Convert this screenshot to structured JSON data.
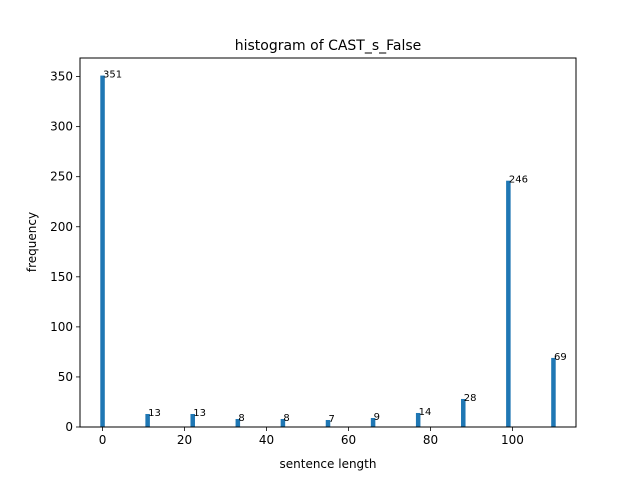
{
  "chart_data": {
    "type": "bar",
    "title": "histogram of CAST_s_False",
    "xlabel": "sentence length",
    "ylabel": "frequency",
    "x": [
      0,
      11,
      22,
      33,
      44,
      55,
      66,
      77,
      88,
      99,
      110
    ],
    "values": [
      351,
      13,
      13,
      8,
      8,
      7,
      9,
      14,
      28,
      246,
      69
    ],
    "data_labels": [
      "351",
      "13",
      "13",
      "8",
      "8",
      "7",
      "9",
      "14",
      "28",
      "246",
      "69"
    ],
    "xlim": [
      -5.5,
      115.5
    ],
    "ylim": [
      0,
      368.55
    ],
    "xticks": [
      0,
      20,
      40,
      60,
      80,
      100
    ],
    "xtick_labels": [
      "0",
      "20",
      "40",
      "60",
      "80",
      "100"
    ],
    "yticks": [
      0,
      50,
      100,
      150,
      200,
      250,
      300,
      350
    ],
    "ytick_labels": [
      "0",
      "50",
      "100",
      "150",
      "200",
      "250",
      "300",
      "350"
    ],
    "bar_color": "#1f77b4",
    "grid": false,
    "legend": "none"
  }
}
